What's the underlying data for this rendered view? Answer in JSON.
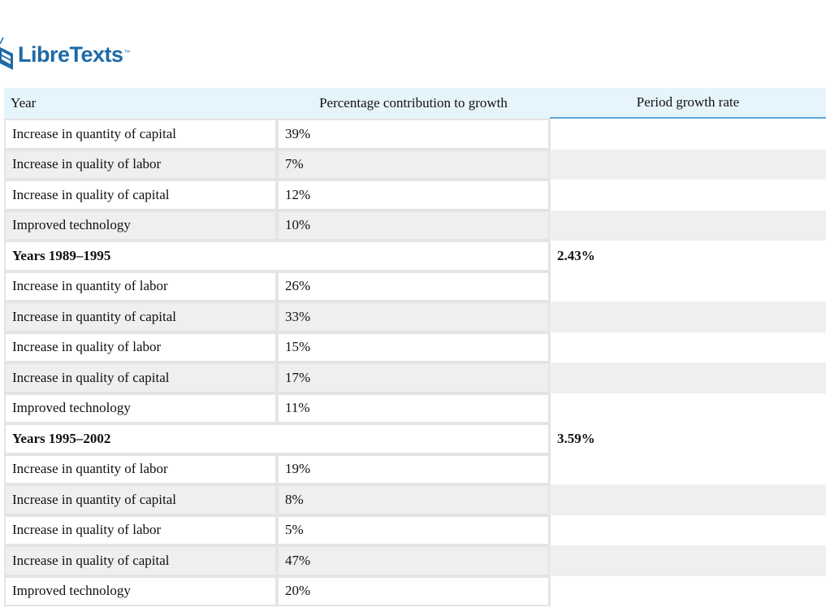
{
  "logo": {
    "name": "LibreTexts",
    "trademark": "™",
    "color": "#1e6aa8"
  },
  "table": {
    "headers": {
      "year": "Year",
      "contribution": "Percentage contribution to growth",
      "rate": "Period growth rate"
    },
    "rows": [
      {
        "type": "item",
        "label": "Increase in quantity of capital",
        "value": "39%"
      },
      {
        "type": "item",
        "label": "Increase in quality of labor",
        "value": "7%"
      },
      {
        "type": "item",
        "label": "Increase in quality of capital",
        "value": "12%"
      },
      {
        "type": "item",
        "label": "Improved technology",
        "value": "10%"
      },
      {
        "type": "group",
        "label": "Years 1989–1995",
        "rate": "2.43%"
      },
      {
        "type": "item",
        "label": "Increase in quantity of labor",
        "value": "26%"
      },
      {
        "type": "item",
        "label": "Increase in quantity of capital",
        "value": "33%"
      },
      {
        "type": "item",
        "label": "Increase in quality of labor",
        "value": "15%"
      },
      {
        "type": "item",
        "label": "Increase in quality of capital",
        "value": "17%"
      },
      {
        "type": "item",
        "label": "Improved technology",
        "value": "11%"
      },
      {
        "type": "group",
        "label": "Years 1995–2002",
        "rate": "3.59%"
      },
      {
        "type": "item",
        "label": "Increase in quantity of labor",
        "value": "19%"
      },
      {
        "type": "item",
        "label": "Increase in quantity of capital",
        "value": "8%"
      },
      {
        "type": "item",
        "label": "Increase in quality of labor",
        "value": "5%"
      },
      {
        "type": "item",
        "label": "Increase in quality of capital",
        "value": "47%"
      },
      {
        "type": "item",
        "label": "Improved technology",
        "value": "20%"
      }
    ]
  }
}
